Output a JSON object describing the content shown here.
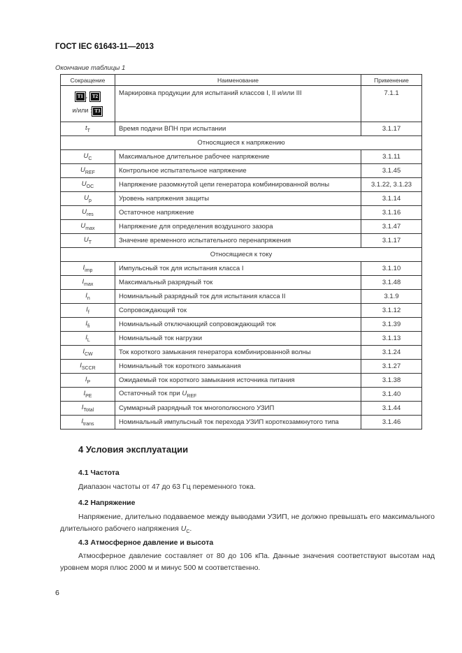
{
  "document": {
    "header": "ГОСТ IEC 61643-11—2013",
    "table_caption": "Окончание таблицы 1",
    "page_number": "6"
  },
  "table": {
    "headers": [
      "Сокращение",
      "Наименование",
      "Применение"
    ],
    "marking_row": {
      "marks": [
        "T1",
        "T2",
        "T3"
      ],
      "separator": ",",
      "or_text": "и/или :",
      "description": "Маркировка продукции для испытаний классов I, II и/или III",
      "application": "7.1.1"
    },
    "rows": [
      {
        "sym": "t",
        "sub": "T",
        "desc": "Время подачи ВПН при испытании",
        "app": "3.1.17"
      },
      {
        "section": "Относящиеся к напряжению"
      },
      {
        "sym": "U",
        "sub": "C",
        "desc": "Максимальное длительное рабочее напряжение",
        "app": "3.1.11"
      },
      {
        "sym": "U",
        "sub": "REF",
        "desc": "Контрольное испытательное напряжение",
        "app": "3.1.45"
      },
      {
        "sym": "U",
        "sub": "OC",
        "desc": "Напряжение разомкнутой цепи генератора комбинированной волны",
        "app": "3.1.22, 3.1.23"
      },
      {
        "sym": "U",
        "sub": "p",
        "desc": "Уровень напряжения защиты",
        "app": "3.1.14"
      },
      {
        "sym": "U",
        "sub": "res",
        "desc": "Остаточное напряжение",
        "app": "3.1.16"
      },
      {
        "sym": "U",
        "sub": "max",
        "desc": "Напряжение для определения воздушного зазора",
        "app": "3.1.47"
      },
      {
        "sym": "U",
        "sub": "T",
        "desc": "Значение временного испытательного перенапряжения",
        "app": "3.1.17"
      },
      {
        "section": "Относящиеся к току"
      },
      {
        "sym": "I",
        "sub": "imp",
        "desc": "Импульсный ток для испытания класса I",
        "app": "3.1.10"
      },
      {
        "sym": "I",
        "sub": "max",
        "desc": "Максимальный разрядный ток",
        "app": "3.1.48"
      },
      {
        "sym": "I",
        "sub": "n",
        "desc": "Номинальный разрядный ток для испытания класса II",
        "app": "3.1.9"
      },
      {
        "sym": "I",
        "sub": "f",
        "desc": "Сопровождающий ток",
        "app": "3.1.12"
      },
      {
        "sym": "I",
        "sub": "fi",
        "desc": "Номинальный отключающий сопровождающий ток",
        "app": "3.1.39"
      },
      {
        "sym": "I",
        "sub": "L",
        "desc": "Номинальный ток нагрузки",
        "app": "3.1.13"
      },
      {
        "sym": "I",
        "sub": "CW",
        "desc": "Ток короткого замыкания генератора комбинированной волны",
        "app": "3.1.24"
      },
      {
        "sym": "I",
        "sub": "SCCR",
        "desc": "Номинальный ток короткого замыкания",
        "app": "3.1.27"
      },
      {
        "sym": "I",
        "sub": "P",
        "desc": "Ожидаемый ток короткого замыкания источника питания",
        "app": "3.1.38"
      },
      {
        "sym": "I",
        "sub": "PE",
        "desc": "Остаточный ток при ",
        "desc_sym": "U",
        "desc_sub": "REF",
        "app": "3.1.40"
      },
      {
        "sym": "I",
        "sub": "Total",
        "desc": "Суммарный разрядный ток многополюсного УЗИП",
        "app": "3.1.44"
      },
      {
        "sym": "I",
        "sub": "trans",
        "desc": "Номинальный импульсный ток перехода УЗИП короткозамкнутого типа",
        "app": "3.1.46"
      }
    ]
  },
  "section4": {
    "title": "4 Условия эксплуатации",
    "s41_title": "4.1 Частота",
    "s41_text": "Диапазон частоты от 47 до 63 Гц переменного тока.",
    "s42_title": "4.2 Напряжение",
    "s42_text": "Напряжение, длительно подаваемое между выводами УЗИП, не должно превышать его макси­мального длительного рабочего напряжения ",
    "s42_sym": "U",
    "s42_sub": "C",
    "s42_end": ".",
    "s43_title": "4.3 Атмосферное давление и высота",
    "s43_text": "Атмосферное давление составляет от 80 до 106 кПа. Данные значения соответствуют высотам над уровнем моря плюс 2000 м и минус 500 м соответственно."
  }
}
